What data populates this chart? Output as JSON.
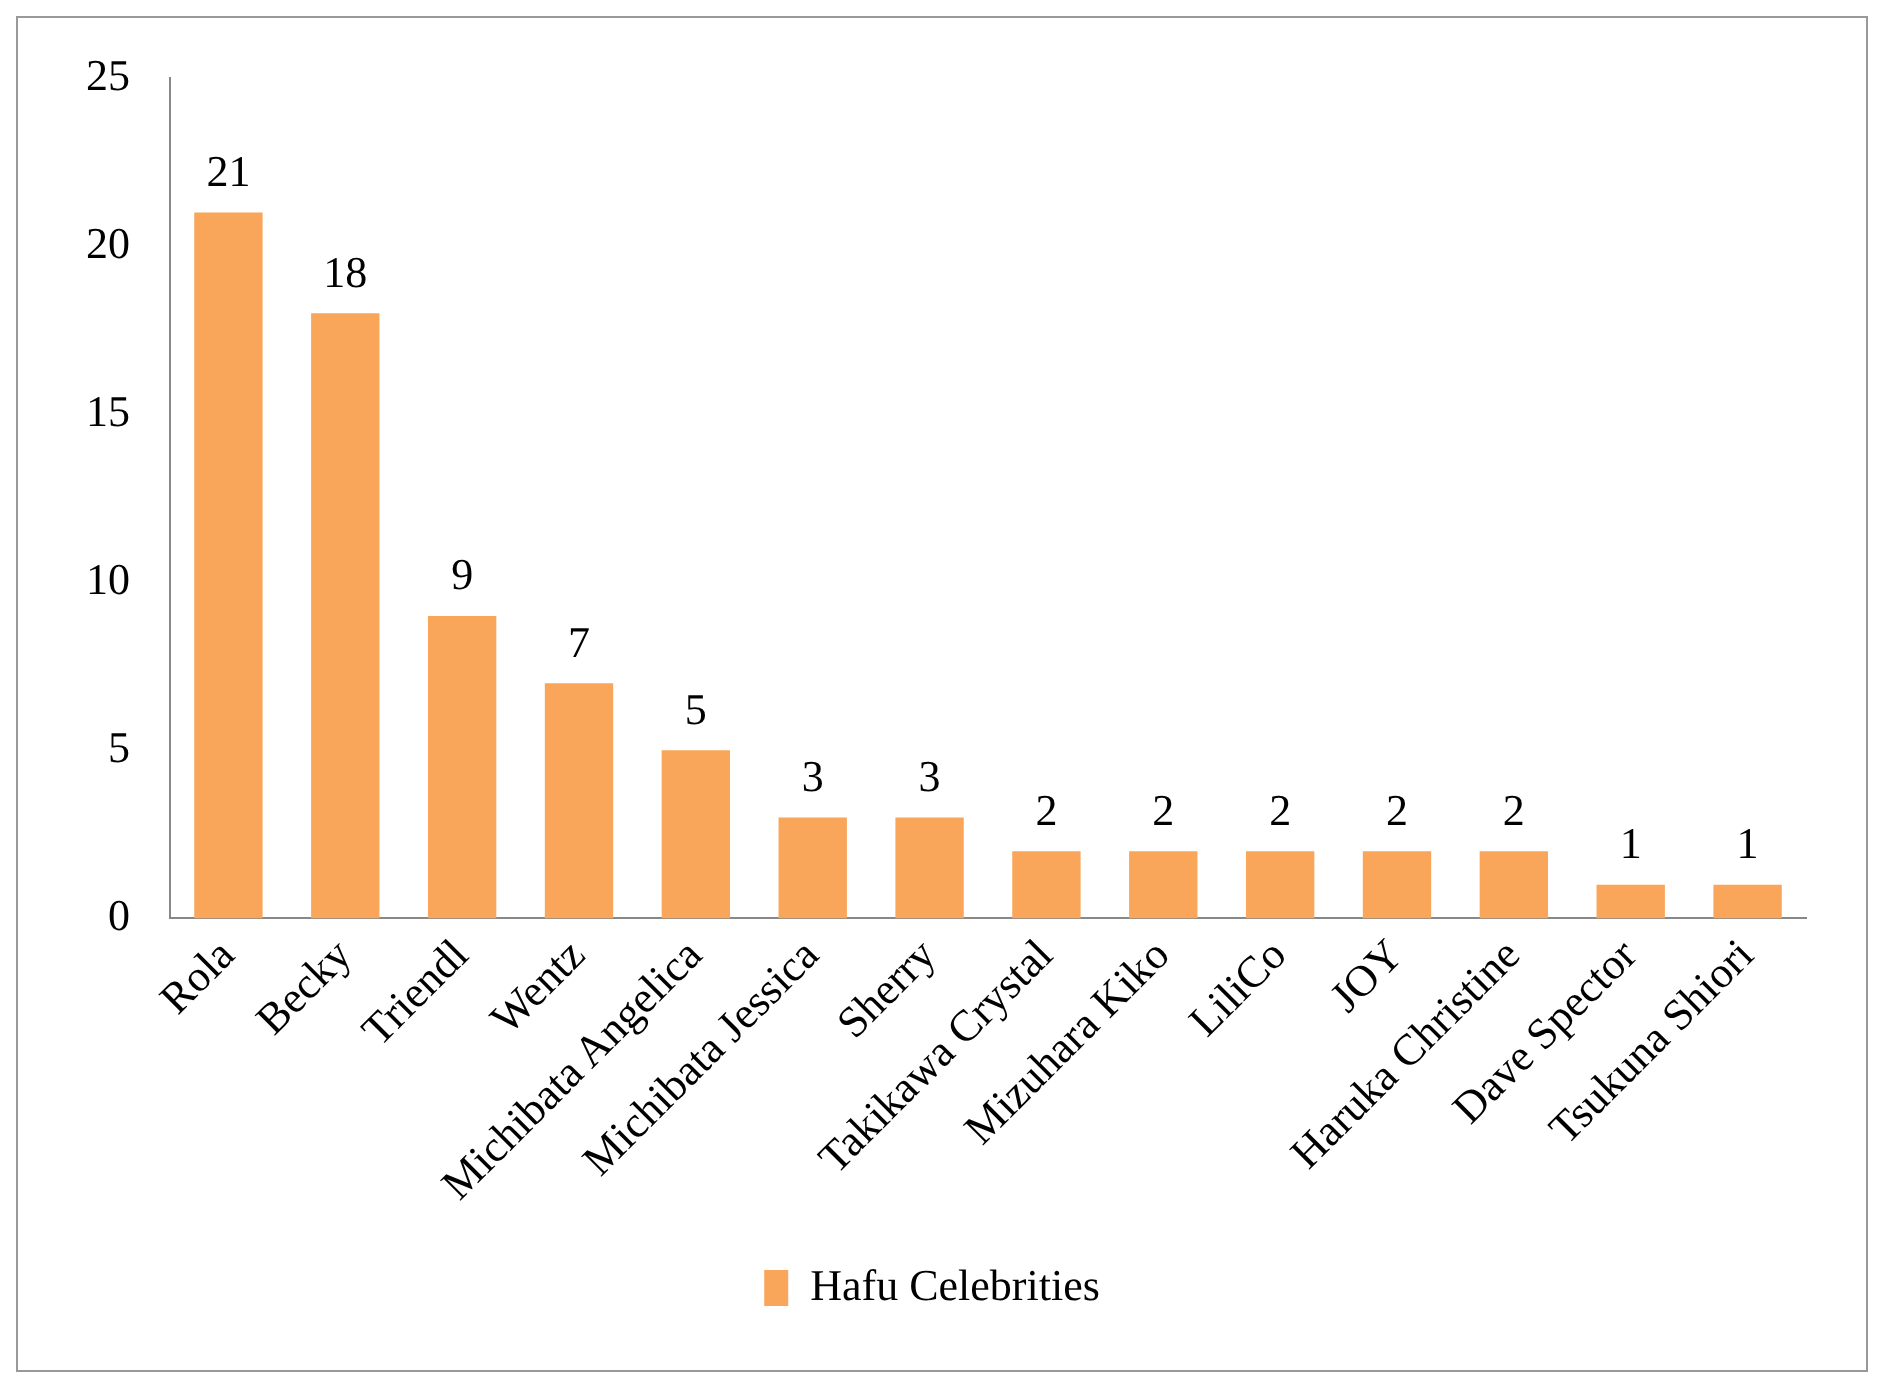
{
  "chart_data": {
    "type": "bar",
    "categories": [
      "Rola",
      "Becky",
      "Triendl",
      "Wentz",
      "Michibata Angelica",
      "Michibata Jessica",
      "Sherry",
      "Takikawa Crystal",
      "Mizuhara Kiko",
      "LiliCo",
      "JOY",
      "Haruka Christine",
      "Dave Spector",
      "Tsukuna Shiori"
    ],
    "series": [
      {
        "name": "Hafu Celebrities",
        "color": "#f9a65a",
        "values": [
          21,
          18,
          9,
          7,
          5,
          3,
          3,
          2,
          2,
          2,
          2,
          2,
          1,
          1
        ]
      }
    ],
    "ylim": [
      0,
      25
    ],
    "yticks": [
      0,
      5,
      10,
      15,
      20,
      25
    ],
    "grid": false,
    "legend": "bottom",
    "data_labels": true
  }
}
